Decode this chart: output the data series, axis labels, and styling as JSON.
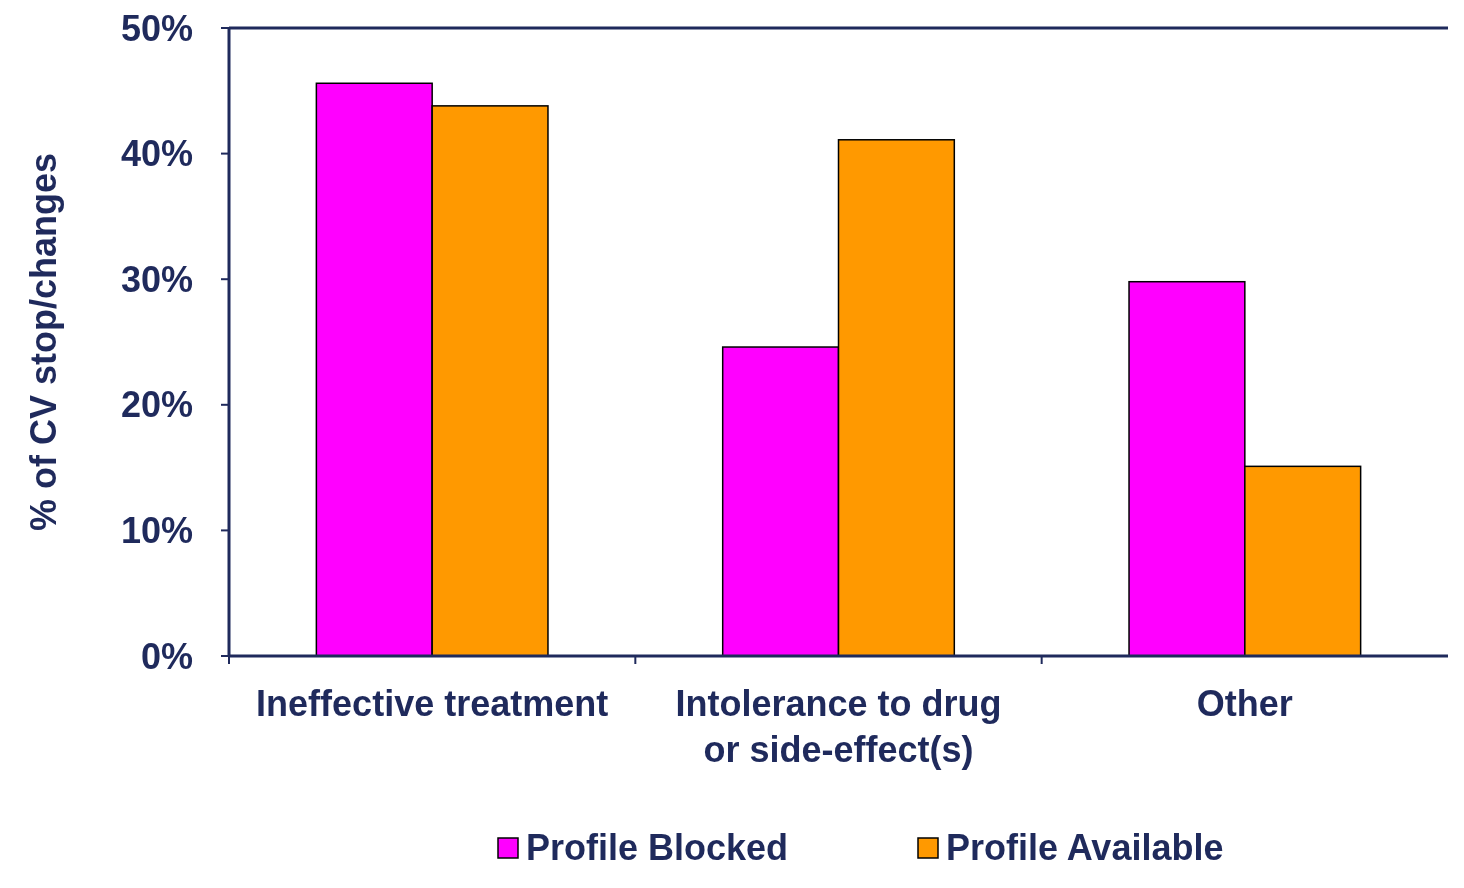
{
  "chart_data": {
    "type": "bar",
    "ylabel": "% of CV stop/changes",
    "categories": [
      "Ineffective treatment",
      "Intolerance to drug\nor side-effect(s)",
      "Other"
    ],
    "series": [
      {
        "name": "Profile Blocked",
        "color": "#ff00ff",
        "values": [
          45.6,
          24.6,
          29.8
        ]
      },
      {
        "name": "Profile Available",
        "color": "#ff9900",
        "values": [
          43.8,
          41.1,
          15.1
        ]
      }
    ],
    "ylim": [
      0,
      50
    ],
    "yticks": [
      {
        "value": 0,
        "label": "0%"
      },
      {
        "value": 10,
        "label": "10%"
      },
      {
        "value": 20,
        "label": "20%"
      },
      {
        "value": 30,
        "label": "30%"
      },
      {
        "value": 40,
        "label": "40%"
      },
      {
        "value": 50,
        "label": "50%"
      }
    ],
    "grid": false,
    "legend": "bottom"
  }
}
